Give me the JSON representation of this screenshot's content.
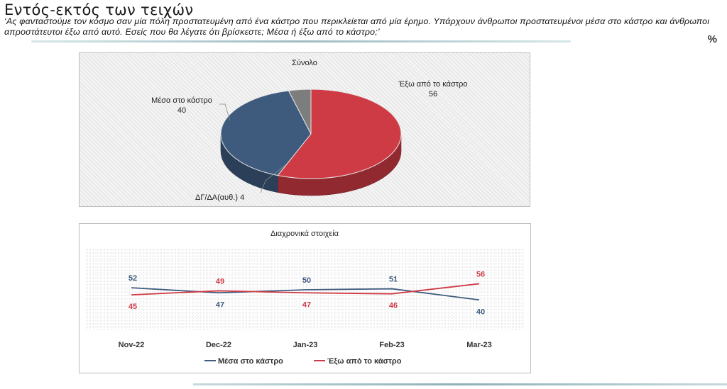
{
  "header": {
    "title": "Εντός-εκτός των τειχών",
    "question": "‘Ας φανταστούμε τον κόσμο σαν μία πόλη προστατευμένη από ένα κάστρο που περικλείεται από μία έρημο. Υπάρχουν άνθρωποι προστατευμένοι μέσα στο κάστρο και άνθρωποι απροστάτευτοι έξω από αυτό. Εσείς που θα λέγατε ότι βρίσκεστε; Μέσα ή έξω από το κάστρο;’",
    "unit": "%"
  },
  "colors": {
    "inside": "#3e5b7e",
    "outside": "#cf3b45",
    "dk": "#7d7d7d"
  },
  "chart_data": [
    {
      "type": "pie",
      "title": "Σύνολο",
      "slices": [
        {
          "label": "Έξω από το κάστρο",
          "value": 56
        },
        {
          "label": "Μέσα στο κάστρο",
          "value": 40
        },
        {
          "label": "ΔΓ/ΔΑ(αυθ.)",
          "value": 4
        }
      ]
    },
    {
      "type": "line",
      "title": "Διαχρονικά στοιχεία",
      "categories": [
        "Nov-22",
        "Dec-22",
        "Jan-23",
        "Feb-23",
        "Mar-23"
      ],
      "series": [
        {
          "name": "Μέσα στο κάστρο",
          "values": [
            52,
            47,
            50,
            51,
            40
          ]
        },
        {
          "name": "Έξω από το κάστρο",
          "values": [
            45,
            49,
            47,
            46,
            56
          ]
        }
      ],
      "legend": "bottom",
      "grid": true
    }
  ]
}
